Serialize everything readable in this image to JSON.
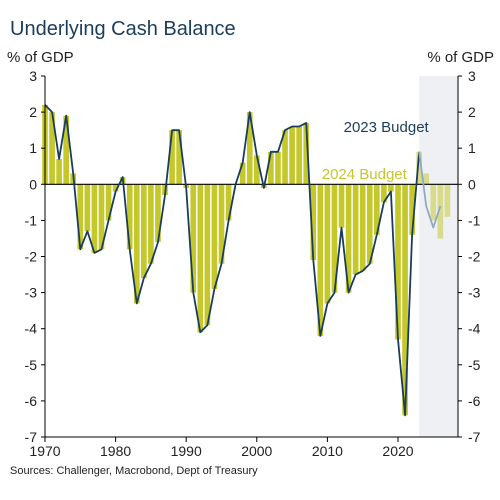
{
  "chart_data": {
    "type": "bar",
    "title": "Underlying Cash Balance",
    "ylabel_left": "% of GDP",
    "ylabel_right": "% of GDP",
    "source": "Sources: Challenger, Macrobond, Dept of Treasury",
    "ylim": [
      -7,
      3
    ],
    "xlim": [
      1970,
      2028.5
    ],
    "yticks": [
      3,
      2,
      1,
      0,
      -1,
      -2,
      -3,
      -4,
      -5,
      -6,
      -7
    ],
    "xticks": [
      1970,
      1980,
      1990,
      2000,
      2010,
      2020
    ],
    "grid": false,
    "forecast_shading_start": 2023,
    "colors": {
      "bars_2024": "#c4c82a",
      "bars_2024_forecast": "#d8db8a",
      "line_2023": "#1a3d5c",
      "line_2023_forecast": "#8eaac2",
      "shading": "#eef0f3",
      "title": "#1a3d5c"
    },
    "series": [
      {
        "name": "2024 Budget",
        "type": "bar",
        "x": [
          1970,
          1971,
          1972,
          1973,
          1974,
          1975,
          1976,
          1977,
          1978,
          1979,
          1980,
          1981,
          1982,
          1983,
          1984,
          1985,
          1986,
          1987,
          1988,
          1989,
          1990,
          1991,
          1992,
          1993,
          1994,
          1995,
          1996,
          1997,
          1998,
          1999,
          2000,
          2001,
          2002,
          2003,
          2004,
          2005,
          2006,
          2007,
          2008,
          2009,
          2010,
          2011,
          2012,
          2013,
          2014,
          2015,
          2016,
          2017,
          2018,
          2019,
          2020,
          2021,
          2022,
          2023,
          2024,
          2025,
          2026,
          2027
        ],
        "values": [
          2.2,
          2.0,
          0.7,
          1.9,
          0.3,
          -1.8,
          -1.3,
          -1.9,
          -1.8,
          -1.0,
          -0.2,
          0.2,
          -1.8,
          -3.3,
          -2.6,
          -2.2,
          -1.6,
          -0.3,
          1.5,
          1.5,
          -0.1,
          -3.0,
          -4.1,
          -3.9,
          -2.9,
          -2.2,
          -1.0,
          0.0,
          0.6,
          2.0,
          0.8,
          -0.1,
          0.9,
          0.9,
          1.5,
          1.6,
          1.6,
          1.7,
          -2.1,
          -4.2,
          -3.3,
          -3.0,
          -1.2,
          -3.0,
          -2.5,
          -2.4,
          -2.2,
          -1.4,
          -0.5,
          -0.2,
          -4.3,
          -6.4,
          -1.4,
          0.9,
          0.3,
          -1.0,
          -1.5,
          -0.9
        ]
      },
      {
        "name": "2023 Budget",
        "type": "line",
        "x": [
          1970,
          1971,
          1972,
          1973,
          1974,
          1975,
          1976,
          1977,
          1978,
          1979,
          1980,
          1981,
          1982,
          1983,
          1984,
          1985,
          1986,
          1987,
          1988,
          1989,
          1990,
          1991,
          1992,
          1993,
          1994,
          1995,
          1996,
          1997,
          1998,
          1999,
          2000,
          2001,
          2002,
          2003,
          2004,
          2005,
          2006,
          2007,
          2008,
          2009,
          2010,
          2011,
          2012,
          2013,
          2014,
          2015,
          2016,
          2017,
          2018,
          2019,
          2020,
          2021,
          2022,
          2023,
          2024,
          2025,
          2026
        ],
        "values": [
          2.2,
          2.0,
          0.7,
          1.9,
          0.3,
          -1.8,
          -1.3,
          -1.9,
          -1.8,
          -1.0,
          -0.2,
          0.2,
          -1.8,
          -3.3,
          -2.6,
          -2.2,
          -1.6,
          -0.3,
          1.5,
          1.5,
          -0.1,
          -3.0,
          -4.1,
          -3.9,
          -2.9,
          -2.2,
          -1.0,
          0.0,
          0.6,
          2.0,
          0.8,
          -0.1,
          0.9,
          0.9,
          1.5,
          1.6,
          1.6,
          1.7,
          -2.1,
          -4.2,
          -3.3,
          -3.0,
          -1.2,
          -3.0,
          -2.5,
          -2.4,
          -2.2,
          -1.4,
          -0.5,
          -0.2,
          -4.3,
          -6.4,
          -1.4,
          0.9,
          -0.6,
          -1.2,
          -0.6
        ]
      }
    ],
    "annotations": [
      {
        "text": "2023 Budget",
        "x": 2012,
        "y": 1.5,
        "series": "2023 Budget"
      },
      {
        "text": "2024 Budget",
        "x": 2012,
        "y": 0.3,
        "series": "2024 Budget"
      }
    ]
  }
}
